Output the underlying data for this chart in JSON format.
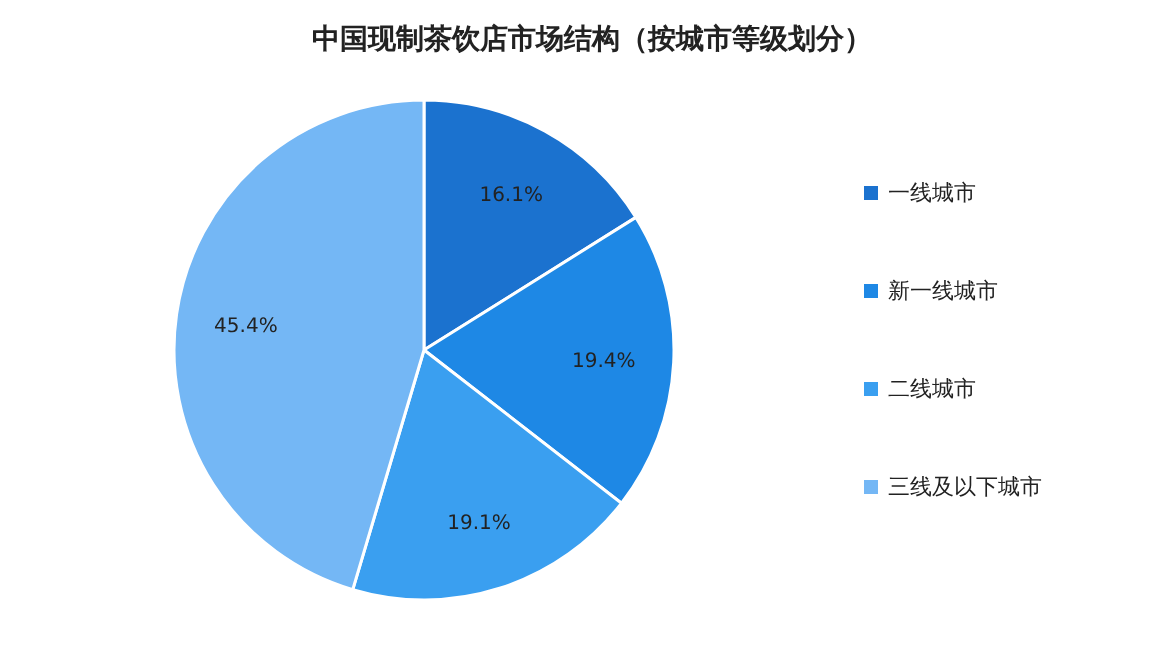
{
  "chart_data": {
    "type": "pie",
    "title": "中国现制茶饮店市场结构（按城市等级划分）",
    "categories": [
      "一线城市",
      "新一线城市",
      "二线城市",
      "三线及以下城市"
    ],
    "values": [
      16.1,
      19.4,
      19.1,
      45.4
    ],
    "colors": [
      "#1b72cf",
      "#1e88e5",
      "#3a9ff0",
      "#74b7f5"
    ],
    "value_labels": [
      "16.1%",
      "19.4%",
      "19.1%",
      "45.4%"
    ],
    "legend": "right"
  }
}
